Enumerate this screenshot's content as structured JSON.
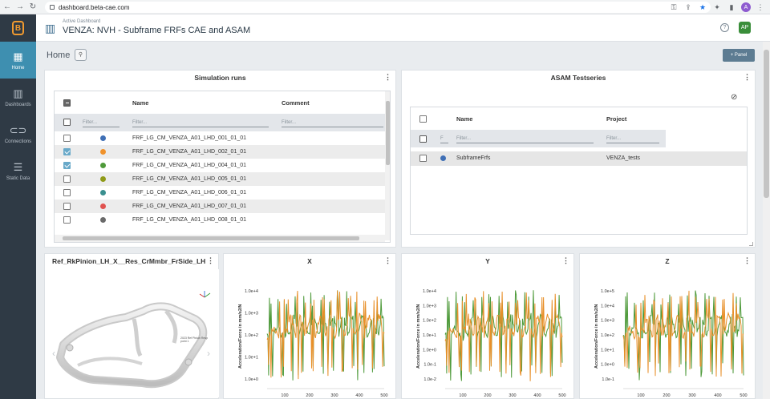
{
  "browser": {
    "url": "dashboard.beta-cae.com",
    "profile_initial": "A"
  },
  "sidebar": {
    "logo": "B",
    "items": [
      {
        "label": "Home",
        "icon": "home-grid-icon",
        "active": true
      },
      {
        "label": "Dashboards",
        "icon": "bar-chart-icon",
        "active": false
      },
      {
        "label": "Connections",
        "icon": "link-icon",
        "active": false
      },
      {
        "label": "Static Data",
        "icon": "database-icon",
        "active": false
      }
    ]
  },
  "header": {
    "subtitle": "Active Dashboard",
    "title": "VENZA: NVH - Subframe FRFs CAE and ASAM",
    "user_initials": "AP"
  },
  "home": {
    "label": "Home",
    "add_panel_label": "+ Panel"
  },
  "sim_runs": {
    "title": "Simulation runs",
    "columns": {
      "name": "Name",
      "comment": "Comment"
    },
    "filter_placeholder": "Filter...",
    "rows": [
      {
        "name": "FRF_LG_CM_VENZA_A01_LHD_001_01_01",
        "color": "#3f6fb5",
        "checked": false
      },
      {
        "name": "FRF_LG_CM_VENZA_A01_LHD_002_01_01",
        "color": "#f0922b",
        "checked": true
      },
      {
        "name": "FRF_LG_CM_VENZA_A01_LHD_004_01_01",
        "color": "#4f9a3a",
        "checked": true
      },
      {
        "name": "FRF_LG_CM_VENZA_A01_LHD_005_01_01",
        "color": "#8f9a18",
        "checked": false
      },
      {
        "name": "FRF_LG_CM_VENZA_A01_LHD_006_01_01",
        "color": "#3a8f8f",
        "checked": false
      },
      {
        "name": "FRF_LG_CM_VENZA_A01_LHD_007_01_01",
        "color": "#e0524f",
        "checked": false
      },
      {
        "name": "FRF_LG_CM_VENZA_A01_LHD_008_01_01",
        "color": "#6a6a6a",
        "checked": false
      }
    ]
  },
  "asam": {
    "title": "ASAM Testseries",
    "columns": {
      "name": "Name",
      "project": "Project"
    },
    "filter_placeholder": "Filter...",
    "filter_short": "F",
    "rows": [
      {
        "name": "SubframeFrfs",
        "project": "VENZA_tests",
        "color": "#3f6fb5"
      }
    ]
  },
  "model_panel": {
    "title": "Ref_RkPinion_LH_X__Res_CrMmbr_FrSide_LH",
    "annotation": "2023 Ref Pinion Resp point 1"
  },
  "charts": [
    {
      "title": "X",
      "ylabel": "Acceleration/Force in mm/s2/N",
      "ytick_labels": [
        "1.0e+4",
        "1.0e+3",
        "1.0e+2",
        "1.0e+1",
        "1.0e+0"
      ],
      "xtick_labels": [
        "100",
        "200",
        "300",
        "400",
        "500"
      ]
    },
    {
      "title": "Y",
      "ylabel": "Acceleration/Force in mm/s2/N",
      "ytick_labels": [
        "1.0e+4",
        "1.0e+3",
        "1.0e+2",
        "1.0e+1",
        "1.0e+0",
        "1.0e-1",
        "1.0e-2"
      ],
      "xtick_labels": [
        "100",
        "200",
        "300",
        "400",
        "500"
      ]
    },
    {
      "title": "Z",
      "ylabel": "Acceleration/Force in mm/s2/N",
      "ytick_labels": [
        "1.0e+5",
        "1.0e+4",
        "1.0e+3",
        "1.0e+2",
        "1.0e+1",
        "1.0e+0",
        "1.0e-1"
      ],
      "xtick_labels": [
        "100",
        "200",
        "300",
        "400",
        "500"
      ]
    }
  ],
  "series_colors": {
    "orange": "#e8902a",
    "green": "#4e9a3a"
  }
}
